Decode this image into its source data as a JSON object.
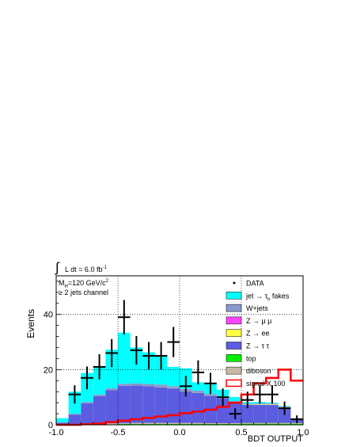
{
  "chart_data": {
    "type": "bar",
    "stacked": true,
    "title": "",
    "xlabel": "BDT OUTPUT",
    "ylabel": "Events",
    "xlim": [
      -1.0,
      1.0
    ],
    "ylim": [
      0,
      54
    ],
    "grid": true,
    "legend_position": "top-right",
    "xtick_labels": [
      "-1.0",
      "-0.5",
      "0.0",
      "0.5",
      "1.0"
    ],
    "xticks": [
      -1.0,
      -0.5,
      0.0,
      0.5,
      1.0
    ],
    "ytick_labels": [
      "0",
      "20",
      "40"
    ],
    "yticks": [
      0,
      20,
      40
    ],
    "annotations": {
      "lumi_integral": "∫",
      "lumi_text": "L dt = 6.0 fb",
      "lumi_sup": "-1",
      "mass_line_prefix": "M",
      "mass_line_sub": "H",
      "mass_line_value": "=120 GeV/c",
      "mass_line_sup": "2",
      "channel": "≥ 2 jets channel"
    },
    "bin_edges": [
      -1.0,
      -0.9,
      -0.8,
      -0.7,
      -0.6,
      -0.5,
      -0.4,
      -0.3,
      -0.2,
      -0.1,
      0.0,
      0.1,
      0.2,
      0.3,
      0.4,
      0.5,
      0.6,
      0.7,
      0.8,
      0.9,
      1.0
    ],
    "stack_series": [
      {
        "name": "top",
        "color": "#00ee00",
        "values": [
          0.1,
          0.1,
          0.1,
          0.2,
          0.2,
          0.3,
          0.3,
          0.3,
          0.3,
          0.3,
          0.3,
          0.3,
          0.3,
          0.3,
          0.3,
          0.4,
          0.4,
          0.4,
          0.4,
          0.4
        ]
      },
      {
        "name": "diboson",
        "color": "#c8b8a6",
        "values": [
          0.1,
          0.1,
          0.2,
          0.2,
          0.3,
          0.3,
          0.4,
          0.4,
          0.4,
          0.4,
          0.4,
          0.4,
          0.3,
          0.3,
          0.3,
          0.3,
          0.3,
          0.3,
          0.3,
          0.3
        ]
      },
      {
        "name": "Z → τ τ",
        "color": "#5c5ce0",
        "values": [
          0.5,
          3.5,
          7.5,
          10.0,
          12.0,
          13.5,
          13.5,
          13.3,
          13.0,
          12.5,
          11.5,
          11.0,
          10.0,
          9.0,
          7.5,
          6.5,
          6.5,
          6.5,
          5.5,
          1.5
        ]
      },
      {
        "name": "Z → ee",
        "color": "#ffff44",
        "values": [
          0.0,
          0.0,
          0.0,
          0.0,
          0.0,
          0.0,
          0.0,
          0.0,
          0.1,
          0.1,
          0.1,
          0.1,
          0.1,
          0.1,
          0.1,
          0.1,
          0.2,
          0.2,
          0.2,
          0.0
        ]
      },
      {
        "name": "Z → μ μ",
        "color": "#ff44ff",
        "values": [
          0.0,
          0.0,
          0.0,
          0.0,
          0.0,
          0.0,
          0.0,
          0.0,
          0.0,
          0.0,
          0.0,
          0.0,
          0.0,
          0.0,
          0.0,
          0.0,
          0.0,
          0.0,
          0.0,
          0.0
        ]
      },
      {
        "name": "W+jets",
        "color": "#8899cc",
        "values": [
          0.2,
          0.3,
          0.5,
          0.6,
          0.7,
          0.8,
          0.8,
          0.8,
          0.8,
          0.7,
          0.7,
          0.6,
          0.5,
          0.5,
          0.4,
          0.4,
          0.4,
          0.3,
          0.3,
          0.2
        ]
      },
      {
        "name": "jet → τh fakes",
        "color": "#00ffff",
        "values": [
          1.5,
          8.0,
          10.5,
          10.0,
          14.0,
          18.5,
          13.0,
          11.5,
          10.5,
          7.0,
          7.5,
          3.0,
          3.5,
          2.5,
          1.5,
          0.5,
          0.5,
          0.3,
          0.2,
          0.0
        ]
      }
    ],
    "signal": {
      "name": "signal X 100",
      "color": "#ff0000",
      "values": [
        0.0,
        0.0,
        0.2,
        0.5,
        1.0,
        1.5,
        2.0,
        2.5,
        3.0,
        3.5,
        4.2,
        4.8,
        5.5,
        6.5,
        8.0,
        11.0,
        15.0,
        17.0,
        20.0,
        16.0
      ]
    },
    "data": {
      "name": "DATA",
      "x": [
        -0.85,
        -0.75,
        -0.65,
        -0.55,
        -0.45,
        -0.35,
        -0.25,
        -0.15,
        -0.05,
        0.05,
        0.15,
        0.25,
        0.35,
        0.45,
        0.55,
        0.65,
        0.75,
        0.85,
        0.95
      ],
      "y": [
        11,
        17,
        21,
        26,
        39,
        27,
        25,
        25,
        30,
        14,
        19,
        15,
        10,
        4,
        9,
        11,
        11,
        6,
        2
      ]
    },
    "legend": [
      {
        "label": "DATA",
        "style": "marker"
      },
      {
        "label_main": "jet → τ",
        "label_sub": "h",
        "label_tail": " fakes",
        "color": "#00ffff",
        "style": "box"
      },
      {
        "label": "W+jets",
        "color": "#8899cc",
        "style": "box"
      },
      {
        "label": "Z → μ μ",
        "color": "#ff44ff",
        "style": "box"
      },
      {
        "label": "Z → ee",
        "color": "#ffff44",
        "style": "box"
      },
      {
        "label": "Z → τ τ",
        "color": "#5c5ce0",
        "style": "box"
      },
      {
        "label": "top",
        "color": "#00ee00",
        "style": "box"
      },
      {
        "label": "diboson",
        "color": "#c8b8a6",
        "style": "box"
      },
      {
        "label": "signal X 100",
        "color": "#ff0000",
        "style": "line"
      }
    ]
  }
}
